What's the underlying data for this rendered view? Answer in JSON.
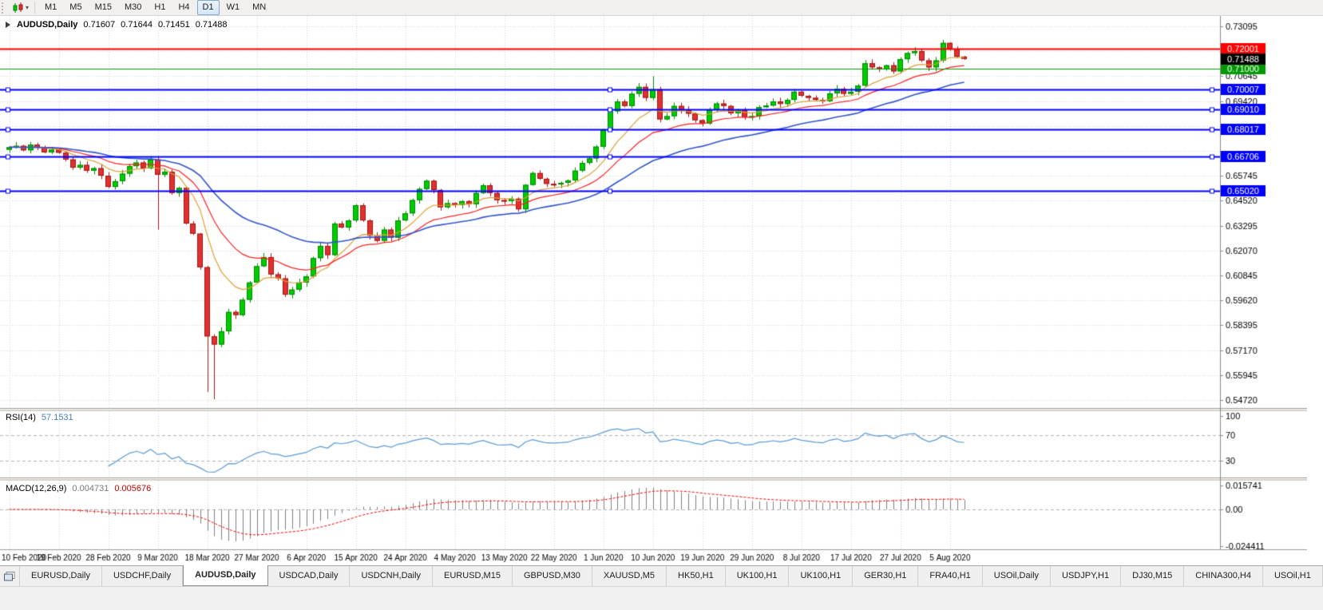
{
  "toolbar": {
    "chart_icon": "candlestick-chart-icon",
    "timeframes": [
      {
        "label": "M1",
        "active": false
      },
      {
        "label": "M5",
        "active": false
      },
      {
        "label": "M15",
        "active": false
      },
      {
        "label": "M30",
        "active": false
      },
      {
        "label": "H1",
        "active": false
      },
      {
        "label": "H4",
        "active": false
      },
      {
        "label": "D1",
        "active": true
      },
      {
        "label": "W1",
        "active": false
      },
      {
        "label": "MN",
        "active": false
      }
    ]
  },
  "chart": {
    "symbol_period": "AUDUSD,Daily",
    "open": "0.71607",
    "high": "0.71644",
    "low": "0.71451",
    "close": "0.71488"
  },
  "indicators": {
    "rsi": {
      "label": "RSI(14)",
      "value": "57.1531",
      "period": 14,
      "color": "#5b9bd5",
      "axis_labels": [
        {
          "label": "100",
          "value": 100
        },
        {
          "label": "70",
          "value": 70
        },
        {
          "label": "30",
          "value": 30
        }
      ],
      "levels": [
        70,
        30
      ]
    },
    "macd": {
      "label": "MACD(12,26,9)",
      "main_value": "0.004731",
      "signal_value": "0.005676",
      "fast": 12,
      "slow": 26,
      "signal": 9,
      "histogram_color": "#808080",
      "signal_color": "#ff0000",
      "axis_labels": [
        {
          "label": "0.015741",
          "value": 0.015741
        },
        {
          "label": "0.00",
          "value": 0
        },
        {
          "label": "-0.024411",
          "value": -0.024411
        }
      ]
    }
  },
  "price_axis": {
    "top_value": 0.73095,
    "grid_step": 0.01225,
    "grid_line_count": 16,
    "grid_labels": [
      "0.73095",
      "0.70645",
      "0.69420",
      "0.65745",
      "0.64520",
      "0.63295",
      "0.62070",
      "0.60845",
      "0.59620",
      "0.58395",
      "0.57170",
      "0.55945",
      "0.54720"
    ],
    "current_price_badge": {
      "label": "0.71488",
      "value": 0.71488,
      "bg": "#000000",
      "text": "#ffffff"
    }
  },
  "hlines": [
    {
      "label": "0.72001",
      "price": 0.72001,
      "color": "#ff0000",
      "width": 2,
      "selected": false,
      "type": "resistance-line"
    },
    {
      "label": "0.71000",
      "price": 0.71,
      "color": "#009900",
      "width": 1,
      "selected": false,
      "type": "support-line"
    },
    {
      "label": "0.70007",
      "price": 0.70007,
      "color": "#0000ff",
      "width": 2,
      "selected": true,
      "type": "support-line"
    },
    {
      "label": "0.69010",
      "price": 0.6901,
      "color": "#0000ff",
      "width": 2,
      "selected": true,
      "type": "support-line"
    },
    {
      "label": "0.68017",
      "price": 0.68017,
      "color": "#0000ff",
      "width": 2,
      "selected": true,
      "type": "support-line"
    },
    {
      "label": "0.66706",
      "price": 0.66706,
      "color": "#0000ff",
      "width": 2,
      "selected": true,
      "type": "support-line"
    },
    {
      "label": "0.65020",
      "price": 0.6502,
      "color": "#0000ff",
      "width": 2,
      "selected": true,
      "type": "support-line"
    }
  ],
  "time_axis": {
    "bars_per_label": 7,
    "labels": [
      "10 Feb 2020",
      "19 Feb 2020",
      "28 Feb 2020",
      "9 Mar 2020",
      "18 Mar 2020",
      "27 Mar 2020",
      "6 Apr 2020",
      "15 Apr 2020",
      "24 Apr 2020",
      "4 May 2020",
      "13 May 2020",
      "22 May 2020",
      "1 Jun 2020",
      "10 Jun 2020",
      "19 Jun 2020",
      "29 Jun 2020",
      "8 Jul 2020",
      "17 Jul 2020",
      "27 Jul 2020",
      "5 Aug 2020"
    ]
  },
  "chart_data": {
    "type": "candlestick",
    "symbol": "AUDUSD",
    "timeframe": "Daily",
    "ylim": [
      0.544,
      0.733
    ],
    "closes": [
      0.6715,
      0.6722,
      0.67,
      0.6728,
      0.6712,
      0.669,
      0.6703,
      0.6688,
      0.6655,
      0.6615,
      0.6628,
      0.66,
      0.6612,
      0.6575,
      0.652,
      0.6548,
      0.6585,
      0.6622,
      0.664,
      0.6612,
      0.6655,
      0.658,
      0.6595,
      0.649,
      0.6515,
      0.634,
      0.629,
      0.6125,
      0.5785,
      0.5745,
      0.581,
      0.5905,
      0.589,
      0.5965,
      0.605,
      0.613,
      0.6175,
      0.609,
      0.607,
      0.599,
      0.6015,
      0.605,
      0.608,
      0.617,
      0.623,
      0.6185,
      0.634,
      0.632,
      0.6355,
      0.643,
      0.6355,
      0.628,
      0.6255,
      0.631,
      0.627,
      0.6355,
      0.639,
      0.6455,
      0.651,
      0.655,
      0.6505,
      0.642,
      0.644,
      0.643,
      0.645,
      0.6435,
      0.649,
      0.6528,
      0.649,
      0.6455,
      0.645,
      0.6462,
      0.641,
      0.653,
      0.6588,
      0.656,
      0.6535,
      0.6532,
      0.654,
      0.6552,
      0.66,
      0.6638,
      0.666,
      0.6718,
      0.68,
      0.6892,
      0.694,
      0.6918,
      0.6978,
      0.7012,
      0.6958,
      0.7,
      0.6852,
      0.6868,
      0.6918,
      0.6898,
      0.688,
      0.6848,
      0.6832,
      0.6898,
      0.693,
      0.6918,
      0.6882,
      0.6898,
      0.6862,
      0.6868,
      0.6912,
      0.692,
      0.694,
      0.6928,
      0.6948,
      0.6988,
      0.6968,
      0.6958,
      0.6948,
      0.6942,
      0.698,
      0.7002,
      0.6978,
      0.6988,
      0.7018,
      0.7128,
      0.7108,
      0.7098,
      0.7118,
      0.7088,
      0.7148,
      0.7178,
      0.7188,
      0.7142,
      0.7108,
      0.7142,
      0.7228,
      0.7198,
      0.716,
      0.71488
    ],
    "overrides": {
      "21": {
        "low": 0.631
      },
      "28": {
        "low": 0.5512
      },
      "29": {
        "low": 0.5476
      },
      "91": {
        "high": 0.7064
      },
      "132": {
        "high": 0.7243
      },
      "135": {
        "open": 0.71607,
        "high": 0.71644,
        "low": 0.71451,
        "close": 0.71488
      }
    },
    "moving_averages": [
      {
        "name": "ma-fast",
        "type": "ema",
        "period": 9,
        "color": "#dfa034",
        "lw": 1.2
      },
      {
        "name": "ma-medium",
        "type": "ema",
        "period": 18,
        "color": "#ff2020",
        "lw": 1.2
      },
      {
        "name": "ma-slow",
        "type": "ema",
        "period": 36,
        "color": "#3355cc",
        "lw": 1.6
      }
    ],
    "colors": {
      "bull_body": "#00cc00",
      "bull_border": "#008800",
      "bear_body": "#e03030",
      "bear_border": "#a01818",
      "grid": "#d6d6d6",
      "axis_line": "#8a8a8a",
      "axis_text": "#000000",
      "level_dash": "#b4b4b4",
      "separator": "#d4d0c8"
    }
  },
  "tabs": [
    {
      "label": "EURUSD,Daily",
      "active": false
    },
    {
      "label": "USDCHF,Daily",
      "active": false
    },
    {
      "label": "AUDUSD,Daily",
      "active": true
    },
    {
      "label": "USDCAD,Daily",
      "active": false
    },
    {
      "label": "USDCNH,Daily",
      "active": false
    },
    {
      "label": "EURUSD,M15",
      "active": false
    },
    {
      "label": "GBPUSD,M30",
      "active": false
    },
    {
      "label": "XAUUSD,M5",
      "active": false
    },
    {
      "label": "HK50,H1",
      "active": false
    },
    {
      "label": "UK100,H1",
      "active": false
    },
    {
      "label": "UK100,H1",
      "active": false
    },
    {
      "label": "GER30,H1",
      "active": false
    },
    {
      "label": "FRA40,H1",
      "active": false
    },
    {
      "label": "USOil,Daily",
      "active": false
    },
    {
      "label": "USDJPY,H1",
      "active": false
    },
    {
      "label": "DJ30,M15",
      "active": false
    },
    {
      "label": "CHINA300,H4",
      "active": false
    },
    {
      "label": "USOil,H1",
      "active": false
    }
  ]
}
